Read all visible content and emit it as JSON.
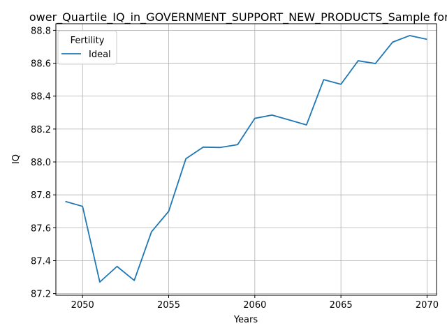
{
  "chart_data": {
    "type": "line",
    "title": "ower_Quartile_IQ_in_GOVERNMENT_SUPPORT_NEW_PRODUCTS_Sample for Whi",
    "xlabel": "Years",
    "ylabel": "IQ",
    "xlim": [
      2048.45,
      2070.55
    ],
    "ylim": [
      87.19,
      88.84
    ],
    "x_ticks": [
      2050,
      2055,
      2060,
      2065,
      2070
    ],
    "y_ticks": [
      87.2,
      87.4,
      87.6,
      87.8,
      88.0,
      88.2,
      88.4,
      88.6,
      88.8
    ],
    "grid": true,
    "legend": {
      "title": "Fertility",
      "placement": "upper-left"
    },
    "series": [
      {
        "name": "Ideal",
        "color": "#1f77b4",
        "x": [
          2049,
          2050,
          2051,
          2052,
          2053,
          2054,
          2055,
          2056,
          2057,
          2058,
          2059,
          2060,
          2061,
          2062,
          2063,
          2064,
          2065,
          2066,
          2067,
          2068,
          2069,
          2070
        ],
        "y": [
          87.76,
          87.73,
          87.27,
          87.365,
          87.28,
          87.575,
          87.7,
          88.02,
          88.09,
          88.088,
          88.105,
          88.265,
          88.285,
          88.255,
          88.225,
          88.5,
          88.472,
          88.615,
          88.598,
          88.728,
          88.768,
          88.745
        ]
      }
    ]
  }
}
